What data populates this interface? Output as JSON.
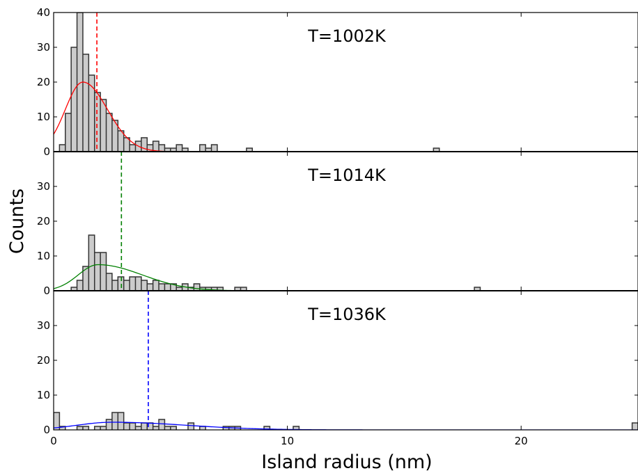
{
  "chart_data": {
    "type": "bar",
    "xlabel": "Island radius (nm)",
    "ylabel": "Counts",
    "xlim": [
      0,
      25
    ],
    "xticks": [
      0,
      10,
      20
    ],
    "bin_width": 0.25,
    "grid": false,
    "panels": [
      {
        "title": "T=1002K",
        "ylim": [
          0,
          40
        ],
        "yticks": [
          0,
          10,
          20,
          30,
          40
        ],
        "color": "#ff0000",
        "mean": 1.85,
        "bars": [
          {
            "x": 0.25,
            "count": 2
          },
          {
            "x": 0.5,
            "count": 11
          },
          {
            "x": 0.75,
            "count": 30
          },
          {
            "x": 1.0,
            "count": 40
          },
          {
            "x": 1.25,
            "count": 28
          },
          {
            "x": 1.5,
            "count": 22
          },
          {
            "x": 1.75,
            "count": 17
          },
          {
            "x": 2.0,
            "count": 15
          },
          {
            "x": 2.25,
            "count": 11
          },
          {
            "x": 2.5,
            "count": 9
          },
          {
            "x": 2.75,
            "count": 6
          },
          {
            "x": 3.0,
            "count": 4
          },
          {
            "x": 3.25,
            "count": 2
          },
          {
            "x": 3.5,
            "count": 3
          },
          {
            "x": 3.75,
            "count": 4
          },
          {
            "x": 4.0,
            "count": 2
          },
          {
            "x": 4.25,
            "count": 3
          },
          {
            "x": 4.5,
            "count": 2
          },
          {
            "x": 4.75,
            "count": 1
          },
          {
            "x": 5.0,
            "count": 1
          },
          {
            "x": 5.25,
            "count": 2
          },
          {
            "x": 5.5,
            "count": 1
          },
          {
            "x": 6.25,
            "count": 2
          },
          {
            "x": 6.5,
            "count": 1
          },
          {
            "x": 6.75,
            "count": 2
          },
          {
            "x": 8.25,
            "count": 1
          },
          {
            "x": 16.25,
            "count": 1
          }
        ],
        "fit": {
          "mode": 1.25,
          "peak": 20,
          "sigma_left": 0.75,
          "decay": 1.0
        }
      },
      {
        "title": "T=1014K",
        "ylim": [
          0,
          40
        ],
        "yticks": [
          0,
          10,
          20,
          30
        ],
        "color": "#008000",
        "mean": 2.9,
        "bars": [
          {
            "x": 0.75,
            "count": 1
          },
          {
            "x": 1.0,
            "count": 3
          },
          {
            "x": 1.25,
            "count": 7
          },
          {
            "x": 1.5,
            "count": 16
          },
          {
            "x": 1.75,
            "count": 11
          },
          {
            "x": 2.0,
            "count": 11
          },
          {
            "x": 2.25,
            "count": 5
          },
          {
            "x": 2.5,
            "count": 3
          },
          {
            "x": 2.75,
            "count": 4
          },
          {
            "x": 3.0,
            "count": 3
          },
          {
            "x": 3.25,
            "count": 4
          },
          {
            "x": 3.5,
            "count": 4
          },
          {
            "x": 3.75,
            "count": 3
          },
          {
            "x": 4.0,
            "count": 2
          },
          {
            "x": 4.25,
            "count": 3
          },
          {
            "x": 4.5,
            "count": 2
          },
          {
            "x": 4.75,
            "count": 2
          },
          {
            "x": 5.0,
            "count": 2
          },
          {
            "x": 5.25,
            "count": 1
          },
          {
            "x": 5.5,
            "count": 2
          },
          {
            "x": 5.75,
            "count": 1
          },
          {
            "x": 6.0,
            "count": 2
          },
          {
            "x": 6.25,
            "count": 1
          },
          {
            "x": 6.5,
            "count": 1
          },
          {
            "x": 6.75,
            "count": 1
          },
          {
            "x": 7.0,
            "count": 1
          },
          {
            "x": 7.75,
            "count": 1
          },
          {
            "x": 8.0,
            "count": 1
          },
          {
            "x": 18.0,
            "count": 1
          }
        ],
        "fit": {
          "mode": 1.9,
          "peak": 7.5,
          "sigma_left": 0.85,
          "decay": 1.8
        }
      },
      {
        "title": "T=1036K",
        "ylim": [
          0,
          40
        ],
        "yticks": [
          0,
          10,
          20,
          30
        ],
        "color": "#0000ff",
        "mean": 4.05,
        "bars": [
          {
            "x": 0.0,
            "count": 5
          },
          {
            "x": 0.25,
            "count": 1
          },
          {
            "x": 1.0,
            "count": 1
          },
          {
            "x": 1.25,
            "count": 1
          },
          {
            "x": 1.75,
            "count": 1
          },
          {
            "x": 2.0,
            "count": 1
          },
          {
            "x": 2.25,
            "count": 3
          },
          {
            "x": 2.5,
            "count": 5
          },
          {
            "x": 2.75,
            "count": 5
          },
          {
            "x": 3.0,
            "count": 2
          },
          {
            "x": 3.25,
            "count": 2
          },
          {
            "x": 3.5,
            "count": 1
          },
          {
            "x": 3.75,
            "count": 2
          },
          {
            "x": 4.0,
            "count": 2
          },
          {
            "x": 4.25,
            "count": 1
          },
          {
            "x": 4.5,
            "count": 3
          },
          {
            "x": 4.75,
            "count": 1
          },
          {
            "x": 5.0,
            "count": 1
          },
          {
            "x": 5.75,
            "count": 2
          },
          {
            "x": 6.25,
            "count": 1
          },
          {
            "x": 7.25,
            "count": 1
          },
          {
            "x": 7.5,
            "count": 1
          },
          {
            "x": 7.75,
            "count": 1
          },
          {
            "x": 9.0,
            "count": 1
          },
          {
            "x": 10.25,
            "count": 1
          },
          {
            "x": 24.75,
            "count": 2
          }
        ],
        "fit": {
          "mode": 2.5,
          "peak": 2.2,
          "sigma_left": 1.5,
          "decay": 3.0
        }
      }
    ]
  }
}
